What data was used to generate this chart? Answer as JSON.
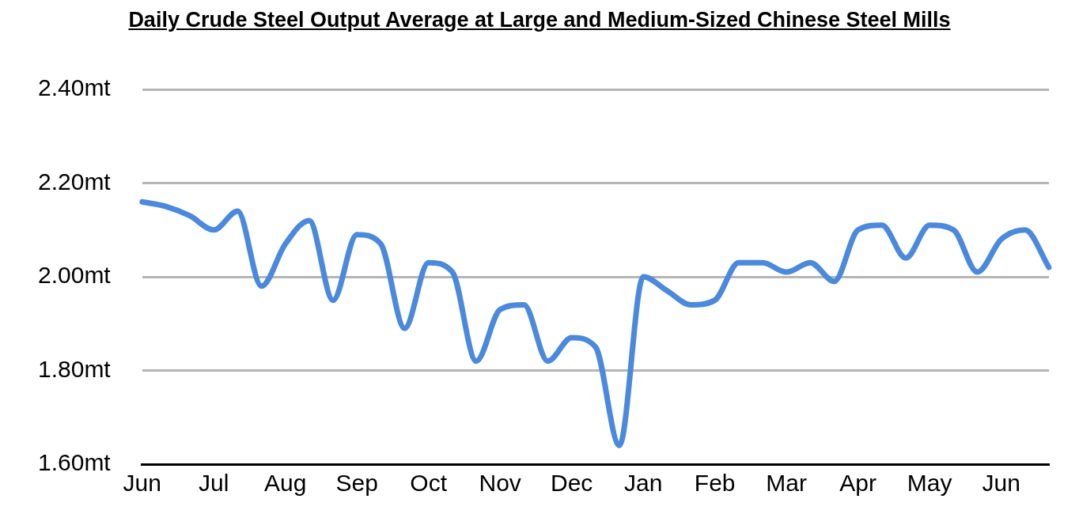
{
  "chart_data": {
    "type": "line",
    "title": "Daily Crude Steel Output Average at Large and Medium-Sized Chinese Steel Mills",
    "categories": [
      "Jun",
      null,
      null,
      "Jul",
      null,
      null,
      "Aug",
      null,
      null,
      "Sep",
      null,
      null,
      "Oct",
      null,
      null,
      "Nov",
      null,
      null,
      "Dec",
      null,
      null,
      "Jan",
      null,
      null,
      "Feb",
      null,
      null,
      "Mar",
      null,
      null,
      "Apr",
      null,
      null,
      "May",
      null,
      null,
      "Jun",
      null,
      null
    ],
    "series": [
      {
        "color": "#4a89dc",
        "values": [
          2.16,
          2.15,
          2.13,
          2.1,
          2.14,
          1.98,
          2.07,
          2.12,
          1.95,
          2.09,
          2.07,
          1.89,
          2.03,
          2.01,
          1.82,
          1.93,
          1.94,
          1.82,
          1.87,
          1.85,
          1.64,
          2.0,
          1.97,
          1.94,
          1.95,
          2.03,
          2.03,
          2.01,
          2.03,
          1.99,
          2.1,
          2.11,
          2.04,
          2.11,
          2.1,
          2.01,
          2.08,
          2.1,
          2.02
        ]
      }
    ],
    "ylim": [
      1.6,
      2.4
    ],
    "yticks": [
      {
        "value": 1.6,
        "label": "1.60mt"
      },
      {
        "value": 1.8,
        "label": "1.80mt"
      },
      {
        "value": 2.0,
        "label": "2.00mt"
      },
      {
        "value": 2.2,
        "label": "2.20mt"
      },
      {
        "value": 2.4,
        "label": "2.40mt"
      }
    ],
    "grid": "y",
    "legend": false,
    "marker": "none",
    "line_style": "solid"
  }
}
